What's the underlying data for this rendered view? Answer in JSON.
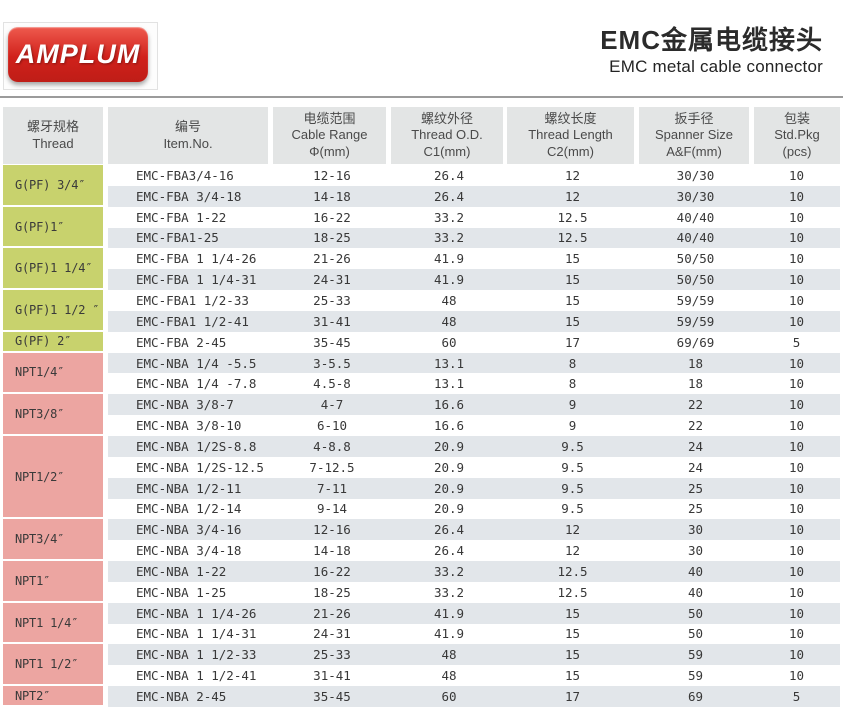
{
  "brand": {
    "logo_text": "AMPLUM"
  },
  "header": {
    "title_zh": "EMC金属电缆接头",
    "title_en": "EMC metal cable connector"
  },
  "colors": {
    "brand_red": "#d0211b",
    "brand_red_light": "#ef5a4e",
    "group_g_pf": "#c8d26d",
    "group_npt": "#eca5a1",
    "row_stripe": "#e2e6ea",
    "header_gray": "#e3e5e5"
  },
  "table": {
    "columns": [
      {
        "zh": "螺牙规格",
        "en": "Thread",
        "sub": ""
      },
      {
        "zh": "编号",
        "en": "Item.No.",
        "sub": ""
      },
      {
        "zh": "电缆范围",
        "en": "Cable Range",
        "sub": "Φ(mm)"
      },
      {
        "zh": "螺纹外径",
        "en": "Thread O.D.",
        "sub": "C1(mm)"
      },
      {
        "zh": "螺纹长度",
        "en": "Thread Length",
        "sub": "C2(mm)"
      },
      {
        "zh": "扳手径",
        "en": "Spanner Size",
        "sub": "A&F(mm)"
      },
      {
        "zh": "包装",
        "en": "Std.Pkg",
        "sub": "(pcs)"
      }
    ],
    "groups": [
      {
        "thread": "G(PF) 3/4″",
        "type": "g",
        "rows": [
          {
            "item": "EMC-FBA3/4-16",
            "range": "12-16",
            "od": "26.4",
            "len": "12",
            "spanner": "30/30",
            "pkg": "10"
          },
          {
            "item": "EMC-FBA 3/4-18",
            "range": "14-18",
            "od": "26.4",
            "len": "12",
            "spanner": "30/30",
            "pkg": "10"
          }
        ]
      },
      {
        "thread": "G(PF)1″",
        "type": "g",
        "rows": [
          {
            "item": "EMC-FBA 1-22",
            "range": "16-22",
            "od": "33.2",
            "len": "12.5",
            "spanner": "40/40",
            "pkg": "10"
          },
          {
            "item": "EMC-FBA1-25",
            "range": "18-25",
            "od": "33.2",
            "len": "12.5",
            "spanner": "40/40",
            "pkg": "10"
          }
        ]
      },
      {
        "thread": "G(PF)1 1/4″",
        "type": "g",
        "rows": [
          {
            "item": "EMC-FBA 1 1/4-26",
            "range": "21-26",
            "od": "41.9",
            "len": "15",
            "spanner": "50/50",
            "pkg": "10"
          },
          {
            "item": "EMC-FBA 1 1/4-31",
            "range": "24-31",
            "od": "41.9",
            "len": "15",
            "spanner": "50/50",
            "pkg": "10"
          }
        ]
      },
      {
        "thread": "G(PF)1 1/2 ″",
        "type": "g",
        "rows": [
          {
            "item": "EMC-FBA1 1/2-33",
            "range": "25-33",
            "od": "48",
            "len": "15",
            "spanner": "59/59",
            "pkg": "10"
          },
          {
            "item": "EMC-FBA1 1/2-41",
            "range": "31-41",
            "od": "48",
            "len": "15",
            "spanner": "59/59",
            "pkg": "10"
          }
        ]
      },
      {
        "thread": "G(PF) 2″",
        "type": "g",
        "rows": [
          {
            "item": "EMC-FBA 2-45",
            "range": "35-45",
            "od": "60",
            "len": "17",
            "spanner": "69/69",
            "pkg": "5"
          }
        ]
      },
      {
        "thread": "NPT1/4″",
        "type": "n",
        "rows": [
          {
            "item": "EMC-NBA 1/4 -5.5",
            "range": "3-5.5",
            "od": "13.1",
            "len": "8",
            "spanner": "18",
            "pkg": "10"
          },
          {
            "item": "EMC-NBA 1/4 -7.8",
            "range": "4.5-8",
            "od": "13.1",
            "len": "8",
            "spanner": "18",
            "pkg": "10"
          }
        ]
      },
      {
        "thread": "NPT3/8″",
        "type": "n",
        "rows": [
          {
            "item": "EMC-NBA 3/8-7",
            "range": "4-7",
            "od": "16.6",
            "len": "9",
            "spanner": "22",
            "pkg": "10"
          },
          {
            "item": "EMC-NBA 3/8-10",
            "range": "6-10",
            "od": "16.6",
            "len": "9",
            "spanner": "22",
            "pkg": "10"
          }
        ]
      },
      {
        "thread": "NPT1/2″",
        "type": "n",
        "rows": [
          {
            "item": "EMC-NBA 1/2S-8.8",
            "range": "4-8.8",
            "od": "20.9",
            "len": "9.5",
            "spanner": "24",
            "pkg": "10"
          },
          {
            "item": "EMC-NBA 1/2S-12.5",
            "range": "7-12.5",
            "od": "20.9",
            "len": "9.5",
            "spanner": "24",
            "pkg": "10"
          },
          {
            "item": "EMC-NBA 1/2-11",
            "range": "7-11",
            "od": "20.9",
            "len": "9.5",
            "spanner": "25",
            "pkg": "10"
          },
          {
            "item": "EMC-NBA 1/2-14",
            "range": "9-14",
            "od": "20.9",
            "len": "9.5",
            "spanner": "25",
            "pkg": "10"
          }
        ]
      },
      {
        "thread": "NPT3/4″",
        "type": "n",
        "rows": [
          {
            "item": "EMC-NBA 3/4-16",
            "range": "12-16",
            "od": "26.4",
            "len": "12",
            "spanner": "30",
            "pkg": "10"
          },
          {
            "item": "EMC-NBA 3/4-18",
            "range": "14-18",
            "od": "26.4",
            "len": "12",
            "spanner": "30",
            "pkg": "10"
          }
        ]
      },
      {
        "thread": "NPT1″",
        "type": "n",
        "rows": [
          {
            "item": "EMC-NBA 1-22",
            "range": "16-22",
            "od": "33.2",
            "len": "12.5",
            "spanner": "40",
            "pkg": "10"
          },
          {
            "item": "EMC-NBA 1-25",
            "range": "18-25",
            "od": "33.2",
            "len": "12.5",
            "spanner": "40",
            "pkg": "10"
          }
        ]
      },
      {
        "thread": "NPT1 1/4″",
        "type": "n",
        "rows": [
          {
            "item": "EMC-NBA 1 1/4-26",
            "range": "21-26",
            "od": "41.9",
            "len": "15",
            "spanner": "50",
            "pkg": "10"
          },
          {
            "item": "EMC-NBA 1 1/4-31",
            "range": "24-31",
            "od": "41.9",
            "len": "15",
            "spanner": "50",
            "pkg": "10"
          }
        ]
      },
      {
        "thread": "NPT1 1/2″",
        "type": "n",
        "rows": [
          {
            "item": "EMC-NBA 1 1/2-33",
            "range": "25-33",
            "od": "48",
            "len": "15",
            "spanner": "59",
            "pkg": "10"
          },
          {
            "item": "EMC-NBA 1 1/2-41",
            "range": "31-41",
            "od": "48",
            "len": "15",
            "spanner": "59",
            "pkg": "10"
          }
        ]
      },
      {
        "thread": "NPT2″",
        "type": "n",
        "rows": [
          {
            "item": "EMC-NBA 2-45",
            "range": "35-45",
            "od": "60",
            "len": "17",
            "spanner": "69",
            "pkg": "5"
          }
        ]
      }
    ]
  }
}
